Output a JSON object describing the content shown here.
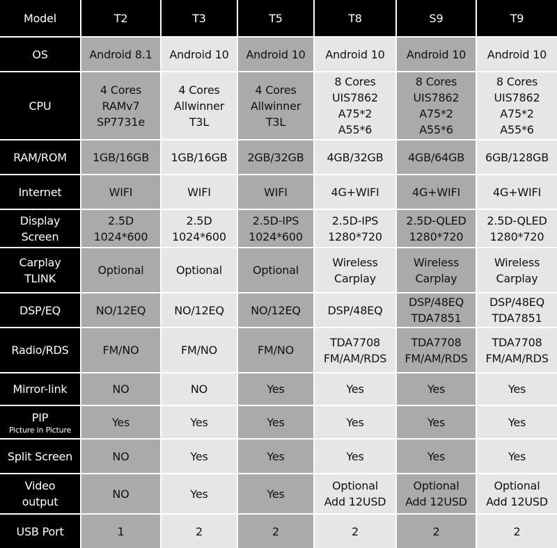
{
  "header": {
    "label": "Model",
    "models": [
      "T2",
      "T3",
      "T5",
      "T8",
      "S9",
      "T9"
    ]
  },
  "colors": {
    "header_bg": "#000000",
    "column_dark": "#aba9a9",
    "column_light": "#e6e6e6"
  },
  "rows": [
    {
      "label": "OS",
      "values": [
        "Android 8.1",
        "Android 10",
        "Android 10",
        "Android 10",
        "Android 10",
        "Android 10"
      ]
    },
    {
      "label": "CPU",
      "values": [
        "4 Cores\nRAMv7\nSP7731e",
        "4 Cores\nAllwinner\nT3L",
        "4 Cores\nAllwinner\nT3L",
        "8 Cores\nUIS7862\nA75*2\nA55*6",
        "8 Cores\nUIS7862\nA75*2\nA55*6",
        "8 Cores\nUIS7862\nA75*2\nA55*6"
      ]
    },
    {
      "label": "RAM/ROM",
      "values": [
        "1GB/16GB",
        "1GB/16GB",
        "2GB/32GB",
        "4GB/32GB",
        "4GB/64GB",
        "6GB/128GB"
      ]
    },
    {
      "label": "Internet",
      "values": [
        "WIFI",
        "WIFI",
        "WIFI",
        "4G+WIFI",
        "4G+WIFI",
        "4G+WIFI"
      ]
    },
    {
      "label": "Display\nScreen",
      "values": [
        "2.5D\n1024*600",
        "2.5D\n1024*600",
        "2.5D-IPS\n1024*600",
        "2.5D-IPS\n1280*720",
        "2.5D-QLED\n1280*720",
        "2.5D-QLED\n1280*720"
      ]
    },
    {
      "label": "Carplay\nTLINK",
      "values": [
        "Optional",
        "Optional",
        "Optional",
        "Wireless\nCarplay",
        "Wireless\nCarplay",
        "Wireless\nCarplay"
      ]
    },
    {
      "label": "DSP/EQ",
      "values": [
        "NO/12EQ",
        "NO/12EQ",
        "NO/12EQ",
        "DSP/48EQ",
        "DSP/48EQ\nTDA7851",
        "DSP/48EQ\nTDA7851"
      ]
    },
    {
      "label": "Radio/RDS",
      "values": [
        "FM/NO",
        "FM/NO",
        "FM/NO",
        "TDA7708\nFM/AM/RDS",
        "TDA7708\nFM/AM/RDS",
        "TDA7708\nFM/AM/RDS"
      ]
    },
    {
      "label": "Mirror-link",
      "values": [
        "NO",
        "NO",
        "Yes",
        "Yes",
        "Yes",
        "Yes"
      ]
    },
    {
      "label": "PIP",
      "sublabel": "Picture in Picture",
      "values": [
        "Yes",
        "Yes",
        "Yes",
        "Yes",
        "Yes",
        "Yes"
      ]
    },
    {
      "label": "Split Screen",
      "values": [
        "NO",
        "Yes",
        "Yes",
        "Yes",
        "Yes",
        "Yes"
      ]
    },
    {
      "label": "Video\noutput",
      "values": [
        "NO",
        "Yes",
        "Yes",
        "Optional\nAdd 12USD",
        "Optional\nAdd 12USD",
        "Optional\nAdd 12USD"
      ]
    },
    {
      "label": "USB Port",
      "values": [
        "1",
        "2",
        "2",
        "2",
        "2",
        "2"
      ]
    }
  ]
}
